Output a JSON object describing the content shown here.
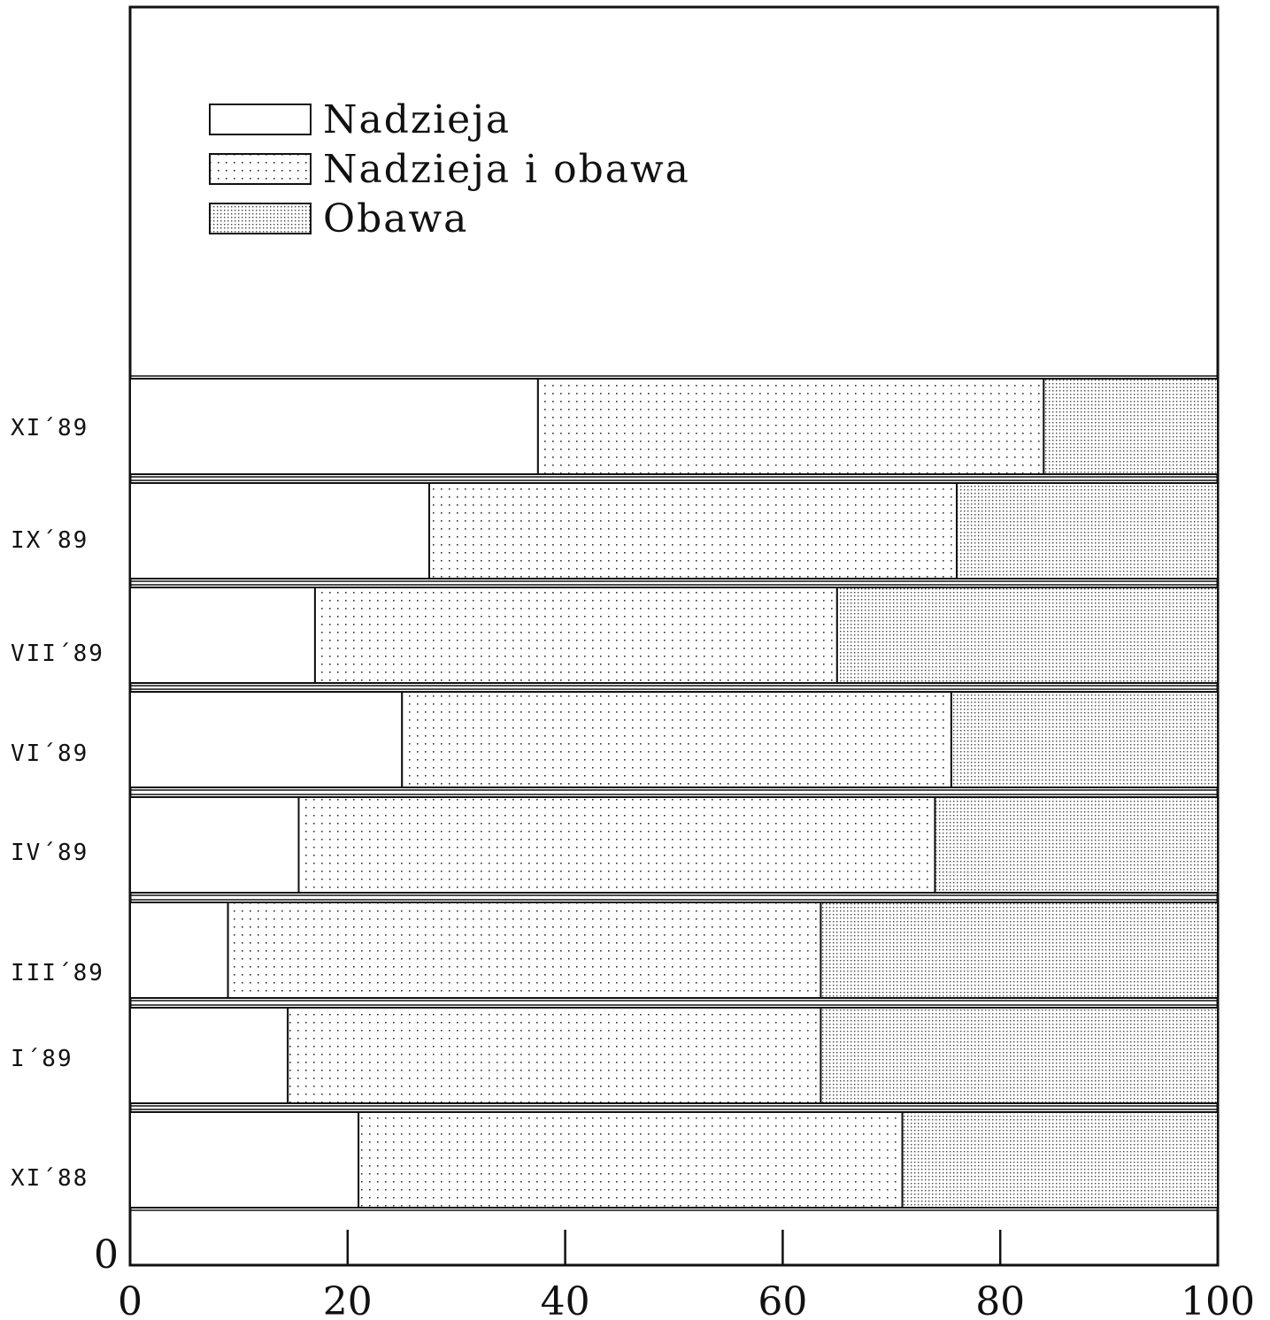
{
  "chart_data": {
    "type": "bar",
    "orientation": "horizontal",
    "stacked": true,
    "categories": [
      "XI´88",
      "I´89",
      "III´89",
      "IV´89",
      "VI´89",
      "VII´89",
      "IX´89",
      "XI´89"
    ],
    "series": [
      {
        "name": "Nadzieja",
        "values": [
          21,
          14.5,
          9,
          15.5,
          25,
          17,
          27.5,
          37.5
        ],
        "pattern": "blank"
      },
      {
        "name": "Nadzieja i obawa",
        "values": [
          50,
          49,
          54.5,
          58.5,
          50.5,
          48,
          48.5,
          46.5
        ],
        "pattern": "sparse-dots"
      },
      {
        "name": "Obawa",
        "values": [
          29,
          36.5,
          36.5,
          26,
          24.5,
          35,
          24,
          16
        ],
        "pattern": "dense-dots"
      }
    ],
    "xlim": [
      0,
      100
    ],
    "xticks": [
      "0",
      "20",
      "40",
      "60",
      "80",
      "100"
    ],
    "yaxis_zero_label": "0",
    "legend_position": "top-left",
    "grid": false,
    "colors": {
      "line": "#111111",
      "fill": "#ffffff",
      "dots": "#333333"
    }
  }
}
